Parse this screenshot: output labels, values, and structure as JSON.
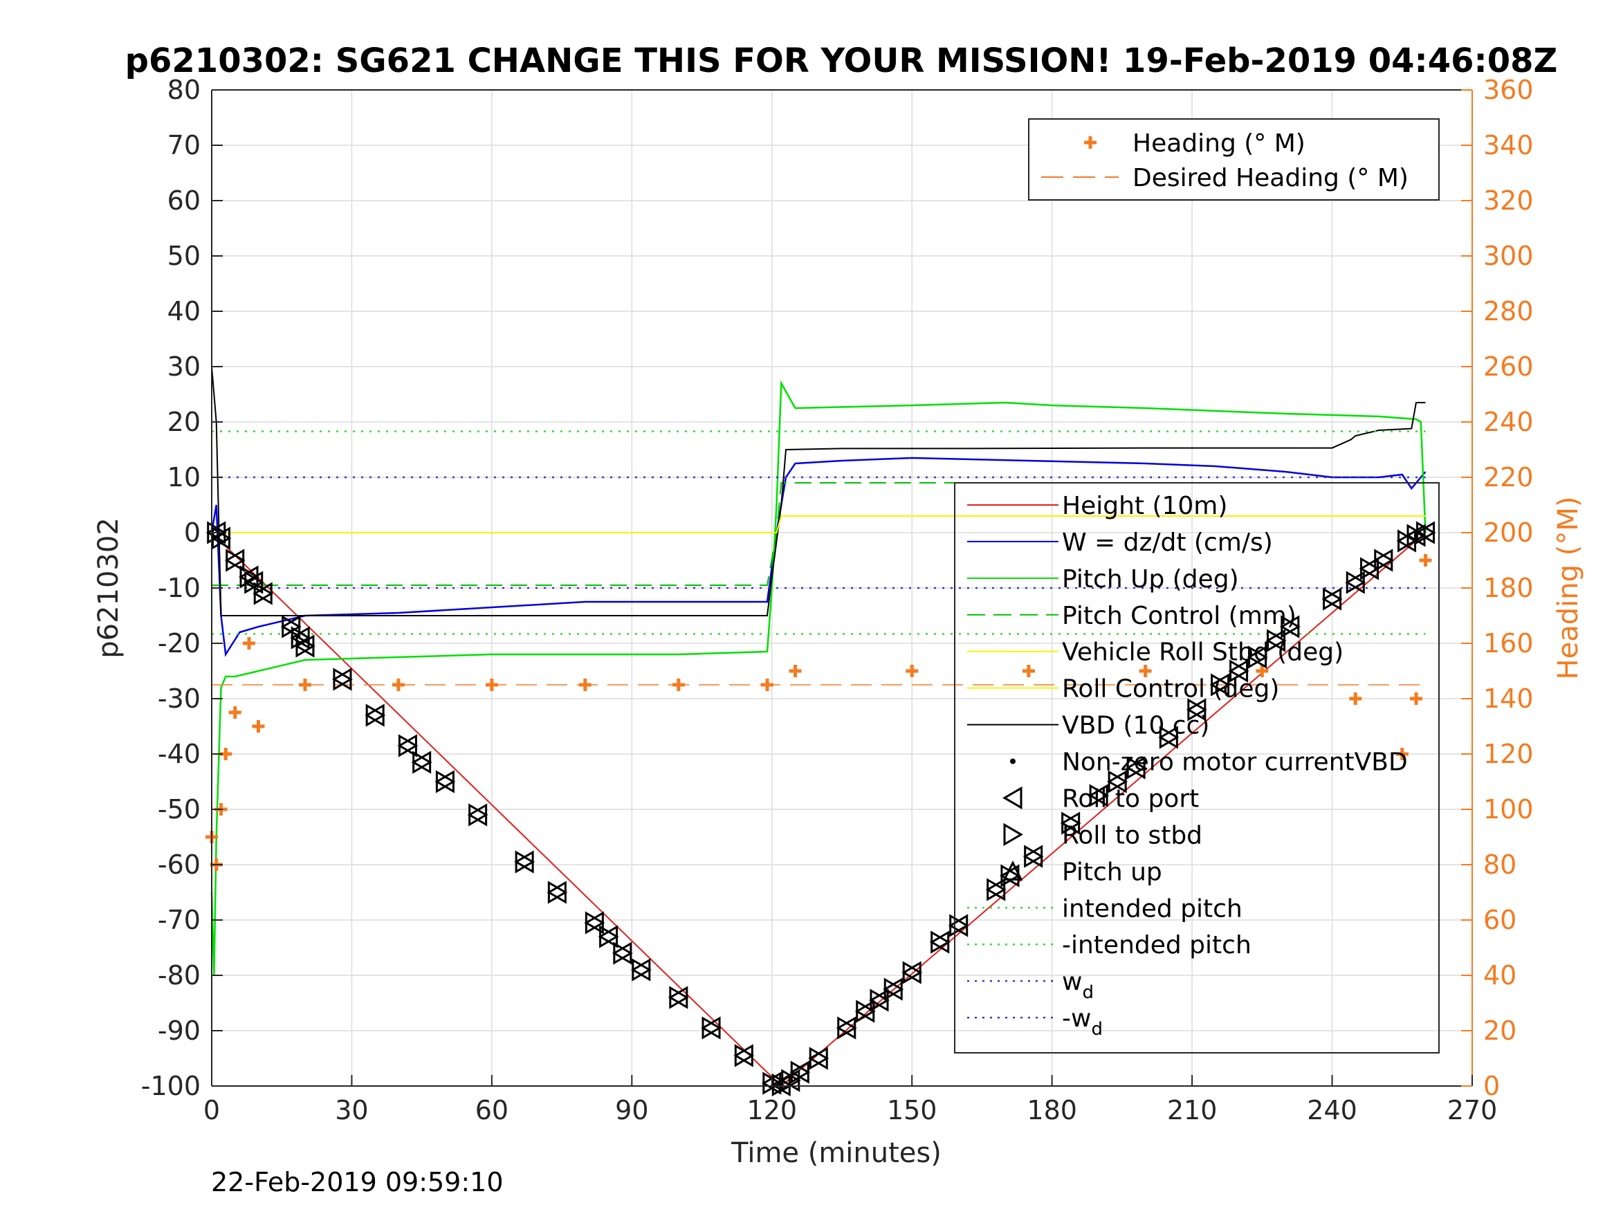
{
  "title": "p6210302: SG621 CHANGE THIS FOR YOUR MISSION! 19-Feb-2019 04:46:08Z",
  "footer_timestamp": "22-Feb-2019 09:59:10",
  "colors": {
    "height": "#e0201b",
    "w": "#0000e0",
    "pitch_up": "#00e000",
    "pitch_control": "#00c000",
    "roll": "#f5f500",
    "vbd": "#000000",
    "heading": "#f47b20",
    "intended": "#33dd33",
    "wd": "#3333dd"
  },
  "chart_data": {
    "type": "line",
    "title": "p6210302: SG621 CHANGE THIS FOR YOUR MISSION! 19-Feb-2019 04:46:08Z",
    "xlabel": "Time (minutes)",
    "ylabel": "p6210302",
    "ylabel_right": "Heading (°M)",
    "xlim": [
      0,
      270
    ],
    "ylim": [
      -100,
      80
    ],
    "ylim_right": [
      0,
      360
    ],
    "x_ticks": [
      "0",
      "30",
      "60",
      "90",
      "120",
      "150",
      "180",
      "210",
      "240",
      "270"
    ],
    "y_ticks": [
      "-100",
      "-90",
      "-80",
      "-70",
      "-60",
      "-50",
      "-40",
      "-30",
      "-20",
      "-10",
      "0",
      "10",
      "20",
      "30",
      "40",
      "50",
      "60",
      "70",
      "80"
    ],
    "y_ticks_right": [
      "0",
      "20",
      "40",
      "60",
      "80",
      "100",
      "120",
      "140",
      "160",
      "180",
      "200",
      "220",
      "240",
      "260",
      "280",
      "300",
      "320",
      "340",
      "360"
    ],
    "grid": true,
    "legend_heading": {
      "placement": "top-right",
      "entries": [
        "Heading (° M)",
        "Desired Heading (° M)"
      ]
    },
    "legend_main": {
      "placement": "right",
      "entries": [
        {
          "label": "Height (10m)",
          "marker": "line",
          "color": "#e0201b"
        },
        {
          "label": "W = dz/dt (cm/s)",
          "marker": "line",
          "color": "#0000e0"
        },
        {
          "label": "Pitch Up (deg)",
          "marker": "line",
          "color": "#00e000"
        },
        {
          "label": "Pitch Control (mm)",
          "marker": "dash",
          "color": "#00c000"
        },
        {
          "label": "Vehicle Roll Stbd (deg)",
          "marker": "line",
          "color": "#f5f500"
        },
        {
          "label": "Roll Control (deg)",
          "marker": "line",
          "color": "#f5f500"
        },
        {
          "label": "VBD (10 cc)",
          "marker": "line",
          "color": "#000000"
        },
        {
          "label": "Non-zero motor currentVBD",
          "marker": "dot",
          "color": "#000000"
        },
        {
          "label": "Roll to port",
          "marker": "tri-left",
          "color": "#000000"
        },
        {
          "label": "Roll to stbd",
          "marker": "tri-right",
          "color": "#000000"
        },
        {
          "label": "Pitch up",
          "marker": "tri-up",
          "color": "#000000"
        },
        {
          "label": "intended pitch",
          "marker": "dotted",
          "color": "#33dd33"
        },
        {
          "label": "-intended pitch",
          "marker": "dotted",
          "color": "#33dd33"
        },
        {
          "label": "w_d",
          "marker": "dotted",
          "color": "#3333dd"
        },
        {
          "label": "-w_d",
          "marker": "dotted",
          "color": "#3333dd"
        }
      ]
    },
    "series": [
      {
        "name": "Height (10m)",
        "x": [
          0,
          122,
          260
        ],
        "y": [
          0,
          -100,
          0
        ]
      },
      {
        "name": "W = dz/dt (cm/s)",
        "x": [
          0,
          1,
          2,
          3,
          6,
          10,
          20,
          40,
          60,
          80,
          100,
          119,
          121,
          123,
          125,
          135,
          150,
          175,
          200,
          215,
          230,
          240,
          250,
          255,
          257,
          259,
          260
        ],
        "y": [
          0,
          5,
          -15,
          -22,
          -18,
          -17,
          -15,
          -14.5,
          -13.5,
          -12.5,
          -12.5,
          -12.5,
          0,
          10,
          12.5,
          13,
          13.5,
          13,
          12.5,
          12,
          11,
          10,
          10,
          10.5,
          8,
          10,
          11
        ]
      },
      {
        "name": "Pitch Up (deg)",
        "x": [
          0,
          0.5,
          1,
          2,
          3,
          5,
          10,
          20,
          40,
          60,
          80,
          100,
          119,
          120,
          121,
          122,
          125,
          150,
          170,
          180,
          200,
          230,
          250,
          258,
          259,
          260
        ],
        "y": [
          -65,
          -80,
          -55,
          -28,
          -26,
          -26,
          -25,
          -23,
          -22.5,
          -22,
          -22,
          -22,
          -21.5,
          -10,
          5,
          27,
          22.5,
          23,
          23.5,
          23,
          22.5,
          21.5,
          21,
          20.5,
          20,
          0
        ]
      },
      {
        "name": "Pitch Control (mm)",
        "x": [
          0,
          119,
          121,
          122,
          260
        ],
        "y": [
          -9.5,
          -9.5,
          0,
          9,
          9
        ]
      },
      {
        "name": "VBD (10 cc)",
        "x": [
          0,
          1,
          2,
          119,
          120,
          122,
          123,
          135,
          160,
          200,
          240,
          244,
          245,
          250,
          257,
          258,
          260
        ],
        "y": [
          30,
          20,
          -15,
          -15,
          -8,
          5,
          15,
          15.2,
          15.2,
          15.3,
          15.3,
          16.8,
          17.5,
          18.5,
          18.8,
          23.5,
          23.5
        ]
      },
      {
        "name": "Vehicle Roll Stbd (deg)",
        "x": [
          0,
          119,
          121,
          122,
          260
        ],
        "y": [
          0,
          0,
          0,
          3,
          3
        ]
      },
      {
        "name": "intended pitch",
        "x": [
          0,
          260
        ],
        "y": [
          18.3,
          18.3
        ]
      },
      {
        "name": "-intended pitch",
        "x": [
          0,
          260
        ],
        "y": [
          -18.3,
          -18.3
        ]
      },
      {
        "name": "w_d",
        "x": [
          0,
          260
        ],
        "y": [
          10,
          10
        ]
      },
      {
        "name": "-w_d",
        "x": [
          0,
          260
        ],
        "y": [
          -10,
          -10
        ]
      },
      {
        "name": "Desired Heading (° M)",
        "axis": "right",
        "x": [
          0,
          260
        ],
        "y": [
          145,
          145
        ]
      },
      {
        "name": "Heading (° M)",
        "axis": "right",
        "x": [
          0,
          1,
          2,
          3,
          5,
          8,
          10,
          20,
          40,
          60,
          80,
          100,
          119,
          125,
          150,
          175,
          200,
          225,
          245,
          255,
          258,
          260
        ],
        "y": [
          90,
          80,
          100,
          120,
          135,
          160,
          130,
          145,
          145,
          145,
          145,
          145,
          145,
          150,
          150,
          150,
          150,
          150,
          140,
          120,
          140,
          190
        ]
      }
    ],
    "roll_markers": {
      "x": [
        1,
        2,
        5,
        8,
        9,
        11,
        17,
        19,
        20,
        28,
        35,
        42,
        45,
        50,
        57,
        67,
        74,
        82,
        85,
        88,
        92,
        100,
        107,
        114,
        120,
        122,
        124,
        126,
        130,
        136,
        140,
        143,
        146,
        150,
        156,
        160,
        168,
        171,
        176,
        184,
        190,
        194,
        198,
        205,
        211,
        216,
        220,
        224,
        228,
        231,
        240,
        245,
        248,
        251,
        256,
        258,
        260
      ],
      "y": [
        0,
        -1,
        -5,
        -8,
        -9,
        -11,
        -17,
        -19,
        -20.5,
        -26.5,
        -33,
        -38.5,
        -41.5,
        -45,
        -51,
        -59.5,
        -65,
        -70.5,
        -73,
        -76,
        -79,
        -84,
        -89.5,
        -94.5,
        -99.5,
        -99.8,
        -99,
        -97.5,
        -95,
        -89.5,
        -86.5,
        -84.5,
        -82.5,
        -79.5,
        -74,
        -71,
        -64.5,
        -62,
        -58.5,
        -52.5,
        -47.5,
        -45,
        -42.5,
        -37,
        -32,
        -27.5,
        -25,
        -22.5,
        -19.5,
        -17,
        -12,
        -9,
        -6.5,
        -5,
        -1.5,
        -0.5,
        0
      ]
    }
  }
}
